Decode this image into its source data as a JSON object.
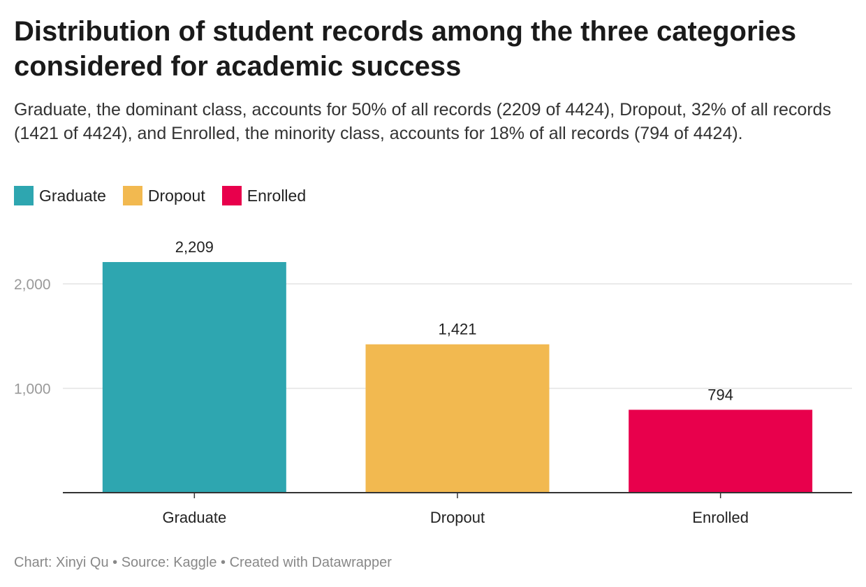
{
  "title": "Distribution of student records among the three categories considered for academic success",
  "subtitle": "Graduate, the dominant class, accounts for 50% of all records (2209 of 4424), Dropout, 32% of all records (1421 of 4424), and Enrolled, the minority class, accounts for 18% of all records (794 of 4424).",
  "legend": [
    {
      "label": "Graduate",
      "color": "#2ea6b0"
    },
    {
      "label": "Dropout",
      "color": "#f2b950"
    },
    {
      "label": "Enrolled",
      "color": "#e8004c"
    }
  ],
  "footer": "Chart: Xinyi Qu • Source: Kaggle • Created with Datawrapper",
  "chart_data": {
    "type": "bar",
    "title": "Distribution of student records among the three categories considered for academic success",
    "categories": [
      "Graduate",
      "Dropout",
      "Enrolled"
    ],
    "values": [
      2209,
      1421,
      794
    ],
    "value_labels": [
      "2,209",
      "1,421",
      "794"
    ],
    "colors": [
      "#2ea6b0",
      "#f2b950",
      "#e8004c"
    ],
    "xlabel": "",
    "ylabel": "",
    "ylim": [
      0,
      2209
    ],
    "yticks": [
      1000,
      2000
    ],
    "ytick_labels": [
      "1,000",
      "2,000"
    ],
    "grid": true,
    "legend_position": "top-left"
  }
}
